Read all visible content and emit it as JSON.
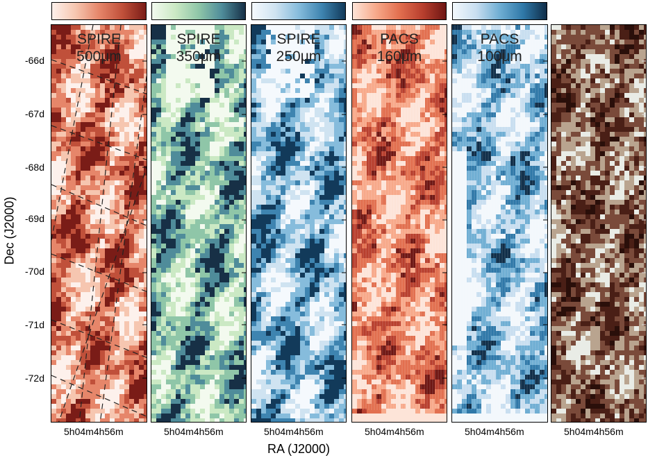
{
  "panels": [
    {
      "id": "spire500",
      "line1": "SPIRE",
      "line2": "500μm",
      "colors": [
        "#fdf1ec",
        "#f6c6b0",
        "#e6866a",
        "#c0503a",
        "#7a1c17"
      ]
    },
    {
      "id": "spire350",
      "line1": "SPIRE",
      "line2": "350μm",
      "colors": [
        "#f3faef",
        "#cbe9c4",
        "#8fc6a8",
        "#4f8c9a",
        "#173046"
      ]
    },
    {
      "id": "spire250",
      "line1": "SPIRE",
      "line2": "250μm",
      "colors": [
        "#f5f9fd",
        "#cfe3f1",
        "#86bcdc",
        "#3e84b0",
        "#123a5a"
      ]
    },
    {
      "id": "pacs160",
      "line1": "PACS",
      "line2": "160μm",
      "colors": [
        "#fde4d8",
        "#f7a98a",
        "#e26f4f",
        "#b83f2e",
        "#6e1613"
      ]
    },
    {
      "id": "pacs100",
      "line1": "PACS",
      "line2": "100μm",
      "colors": [
        "#f3f8fc",
        "#c8def0",
        "#6faed3",
        "#2f78a8",
        "#0f2d48"
      ]
    },
    {
      "id": "composite",
      "line1": "",
      "line2": "",
      "colors": [
        "#2a0f0a",
        "#4a1f16",
        "#7a4a3a",
        "#b9a48f",
        "#e9ece6"
      ]
    }
  ],
  "axes": {
    "ylabel": "Dec (J2000)",
    "xlabel": "RA (J2000)",
    "yticks": [
      "-66d",
      "-67d",
      "-68d",
      "-69d",
      "-70d",
      "-71d",
      "-72d"
    ],
    "xtick_left": "5h04m",
    "xtick_right": "4h56m"
  }
}
